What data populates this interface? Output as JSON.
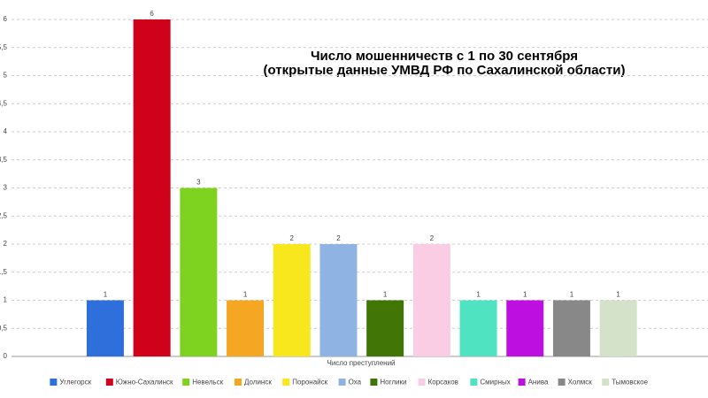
{
  "chart_data": {
    "type": "bar",
    "title": [
      "Число мошенничеств с 1 по 30 сентября",
      "(открытые данные УМВД РФ по Сахалинской области)"
    ],
    "x_label": "Число преступлений",
    "categories": [
      "Углегорск",
      "Южно-Сахалинск",
      "Невельск",
      "Долинск",
      "Поронайск",
      "Оха",
      "Ноглики",
      "Корсаков",
      "Смирных",
      "Анива",
      "Холмск",
      "Тымовское"
    ],
    "values": [
      1,
      6,
      3,
      1,
      2,
      2,
      1,
      2,
      1,
      1,
      1,
      1
    ],
    "colors": [
      "#2f6fdc",
      "#d0021b",
      "#7ed321",
      "#f5a623",
      "#f8e71c",
      "#8fb4e3",
      "#417505",
      "#fbcde5",
      "#50e3c2",
      "#bd10e0",
      "#888888",
      "#d4e2c9"
    ],
    "ylim": [
      0,
      6
    ],
    "yticks": [
      0,
      {
        "value": 0.5,
        "label": "0,5"
      },
      1,
      {
        "value": 1.5,
        "label": "1,5"
      },
      2,
      {
        "value": 2.5,
        "label": "2,5"
      },
      3,
      {
        "value": 3.5,
        "label": "3,5"
      },
      4,
      {
        "value": 4.5,
        "label": "4,5"
      },
      5,
      {
        "value": 5.5,
        "label": "5,5"
      },
      6
    ],
    "grid": true
  }
}
